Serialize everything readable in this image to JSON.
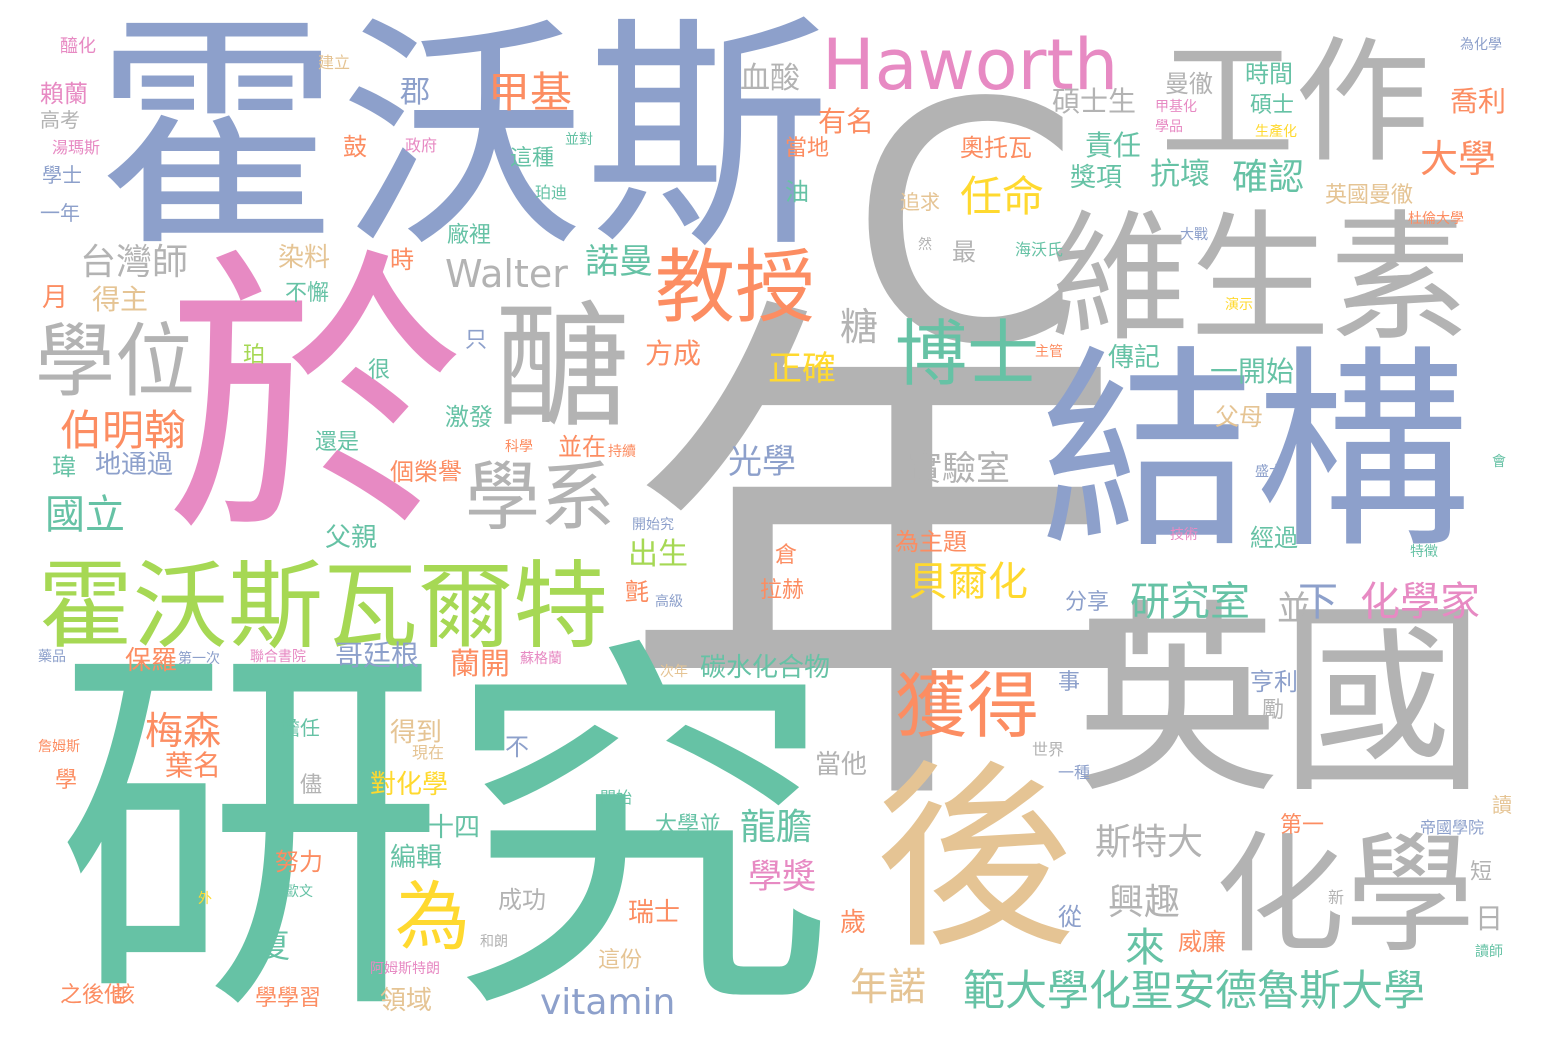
{
  "palette": {
    "gray": "#b3b3b3",
    "blue": "#8da0cb",
    "pink": "#e78ac3",
    "green": "#66c2a5",
    "orange": "#fc8d62",
    "lime": "#a6d854",
    "gold": "#e5c494",
    "yellow": "#ffd92f"
  },
  "words": [
    {
      "t": "年",
      "c": "gray"
    },
    {
      "t": "C",
      "c": "gray"
    },
    {
      "t": "研究",
      "c": "green"
    },
    {
      "t": "於",
      "c": "pink"
    },
    {
      "t": "霍沃斯",
      "c": "blue"
    },
    {
      "t": "結構",
      "c": "blue"
    },
    {
      "t": "英國",
      "c": "gray"
    },
    {
      "t": "後",
      "c": "gold"
    },
    {
      "t": "維生素",
      "c": "gray"
    },
    {
      "t": "工作",
      "c": "gray"
    },
    {
      "t": "醣",
      "c": "gray"
    },
    {
      "t": "霍沃斯瓦爾特",
      "c": "lime"
    },
    {
      "t": "化學",
      "c": "gray"
    },
    {
      "t": "Haworth",
      "c": "pink"
    },
    {
      "t": "教授",
      "c": "orange"
    },
    {
      "t": "學位",
      "c": "gray"
    },
    {
      "t": "學系",
      "c": "gray"
    },
    {
      "t": "博士",
      "c": "green"
    },
    {
      "t": "獲得",
      "c": "orange"
    },
    {
      "t": "為",
      "c": "yellow"
    },
    {
      "t": "範大學化聖安德魯斯大學",
      "c": "green"
    },
    {
      "t": "研究室",
      "c": "green"
    },
    {
      "t": "任命",
      "c": "yellow"
    },
    {
      "t": "Walter",
      "c": "gray"
    },
    {
      "t": "伯明翰",
      "c": "orange"
    },
    {
      "t": "甲基",
      "c": "orange"
    },
    {
      "t": "化學家",
      "c": "pink"
    },
    {
      "t": "貝爾化",
      "c": "yellow"
    },
    {
      "t": "vitamin",
      "c": "blue"
    },
    {
      "t": "國立",
      "c": "green"
    },
    {
      "t": "台灣師",
      "c": "gray"
    },
    {
      "t": "大學",
      "c": "orange"
    },
    {
      "t": "確認",
      "c": "green"
    },
    {
      "t": "諾曼",
      "c": "green"
    },
    {
      "t": "實驗室",
      "c": "gray"
    },
    {
      "t": "梅森",
      "c": "orange"
    },
    {
      "t": "斯特大",
      "c": "gray"
    },
    {
      "t": "興趣",
      "c": "gray"
    },
    {
      "t": "龍膽",
      "c": "green"
    },
    {
      "t": "光學",
      "c": "blue"
    },
    {
      "t": "正確",
      "c": "yellow"
    },
    {
      "t": "學獎",
      "c": "pink"
    },
    {
      "t": "年諾",
      "c": "gold"
    },
    {
      "t": "碳水化合物",
      "c": "green"
    },
    {
      "t": "下",
      "c": "blue"
    },
    {
      "t": "並",
      "c": "gray"
    },
    {
      "t": "來",
      "c": "green"
    },
    {
      "t": "碩士生",
      "c": "gray"
    },
    {
      "t": "抗壞",
      "c": "green"
    },
    {
      "t": "喬利",
      "c": "orange"
    },
    {
      "t": "英國曼徹",
      "c": "gold"
    },
    {
      "t": "糖",
      "c": "gray"
    },
    {
      "t": "方成",
      "c": "orange"
    },
    {
      "t": "血酸",
      "c": "gray"
    },
    {
      "t": "有名",
      "c": "orange"
    },
    {
      "t": "責任",
      "c": "green"
    },
    {
      "t": "獎項",
      "c": "green"
    },
    {
      "t": "奧托瓦",
      "c": "orange"
    },
    {
      "t": "曼徹",
      "c": "gray"
    },
    {
      "t": "時間",
      "c": "green"
    },
    {
      "t": "碩士",
      "c": "green"
    },
    {
      "t": "一開始",
      "c": "green"
    },
    {
      "t": "傳記",
      "c": "green"
    },
    {
      "t": "父母",
      "c": "gold"
    },
    {
      "t": "分享",
      "c": "blue"
    },
    {
      "t": "亨利",
      "c": "blue"
    },
    {
      "t": "經過",
      "c": "green"
    },
    {
      "t": "為主題",
      "c": "orange"
    },
    {
      "t": "出生",
      "c": "lime"
    },
    {
      "t": "蘭開",
      "c": "orange"
    },
    {
      "t": "哥廷根",
      "c": "blue"
    },
    {
      "t": "保羅",
      "c": "orange"
    },
    {
      "t": "地通過",
      "c": "blue"
    },
    {
      "t": "個榮譽",
      "c": "orange"
    },
    {
      "t": "父親",
      "c": "green"
    },
    {
      "t": "激發",
      "c": "green"
    },
    {
      "t": "還是",
      "c": "green"
    },
    {
      "t": "並在",
      "c": "orange"
    },
    {
      "t": "葉名",
      "c": "orange"
    },
    {
      "t": "對化學",
      "c": "yellow"
    },
    {
      "t": "得到",
      "c": "gold"
    },
    {
      "t": "十四",
      "c": "green"
    },
    {
      "t": "編輯",
      "c": "green"
    },
    {
      "t": "努力",
      "c": "orange"
    },
    {
      "t": "成功",
      "c": "gray"
    },
    {
      "t": "瑞士",
      "c": "orange"
    },
    {
      "t": "這份",
      "c": "gold"
    },
    {
      "t": "領域",
      "c": "gold"
    },
    {
      "t": "學學習",
      "c": "orange"
    },
    {
      "t": "之後他",
      "c": "orange"
    },
    {
      "t": "該",
      "c": "orange"
    },
    {
      "t": "夏",
      "c": "green"
    },
    {
      "t": "當他",
      "c": "gray"
    },
    {
      "t": "歲",
      "c": "orange"
    },
    {
      "t": "威廉",
      "c": "orange"
    },
    {
      "t": "日",
      "c": "gray"
    },
    {
      "t": "第一",
      "c": "orange"
    },
    {
      "t": "從",
      "c": "blue"
    },
    {
      "t": "月",
      "c": "orange"
    },
    {
      "t": "得主",
      "c": "gold"
    },
    {
      "t": "染料",
      "c": "gold"
    },
    {
      "t": "不懈",
      "c": "green"
    },
    {
      "t": "廠裡",
      "c": "green"
    },
    {
      "t": "最",
      "c": "gray"
    },
    {
      "t": "郡",
      "c": "blue"
    },
    {
      "t": "這種",
      "c": "green"
    },
    {
      "t": "鼓",
      "c": "orange"
    },
    {
      "t": "油",
      "c": "green"
    },
    {
      "t": "當地",
      "c": "orange"
    },
    {
      "t": "追求",
      "c": "gold"
    },
    {
      "t": "賴蘭",
      "c": "pink"
    },
    {
      "t": "高考",
      "c": "gray"
    },
    {
      "t": "學士",
      "c": "blue"
    },
    {
      "t": "一年",
      "c": "blue"
    },
    {
      "t": "醯化",
      "c": "pink"
    },
    {
      "t": "瑋",
      "c": "green"
    },
    {
      "t": "時",
      "c": "orange"
    },
    {
      "t": "很",
      "c": "green"
    },
    {
      "t": "只",
      "c": "blue"
    },
    {
      "t": "不",
      "c": "blue"
    },
    {
      "t": "儘",
      "c": "gray"
    },
    {
      "t": "擔任",
      "c": "green"
    },
    {
      "t": "倉",
      "c": "orange"
    },
    {
      "t": "拉赫",
      "c": "orange"
    },
    {
      "t": "氈",
      "c": "orange"
    },
    {
      "t": "大學並",
      "c": "green"
    },
    {
      "t": "事",
      "c": "blue"
    },
    {
      "t": "勵",
      "c": "gray"
    },
    {
      "t": "學",
      "c": "orange"
    },
    {
      "t": "然",
      "c": "gray"
    },
    {
      "t": "帝國學院",
      "c": "blue"
    },
    {
      "t": "讀",
      "c": "gold"
    },
    {
      "t": "短",
      "c": "gray"
    },
    {
      "t": "新",
      "c": "gray"
    },
    {
      "t": "讀師",
      "c": "green"
    },
    {
      "t": "現在",
      "c": "gold"
    },
    {
      "t": "開始",
      "c": "green"
    },
    {
      "t": "和朗",
      "c": "gray"
    },
    {
      "t": "世界",
      "c": "gray"
    },
    {
      "t": "一種",
      "c": "blue"
    },
    {
      "t": "建立",
      "c": "gold"
    },
    {
      "t": "政府",
      "c": "pink"
    },
    {
      "t": "並對",
      "c": "green"
    },
    {
      "t": "為化學",
      "c": "blue"
    },
    {
      "t": "甲基化",
      "c": "pink"
    },
    {
      "t": "生產化",
      "c": "yellow"
    },
    {
      "t": "學品",
      "c": "pink"
    },
    {
      "t": "大戰",
      "c": "blue"
    },
    {
      "t": "杜倫大學",
      "c": "orange"
    },
    {
      "t": "演示",
      "c": "yellow"
    },
    {
      "t": "海沃氏",
      "c": "green"
    },
    {
      "t": "主管",
      "c": "orange"
    },
    {
      "t": "技術",
      "c": "pink"
    },
    {
      "t": "特徵",
      "c": "green"
    },
    {
      "t": "會",
      "c": "green"
    },
    {
      "t": "盛大",
      "c": "blue"
    },
    {
      "t": "次年",
      "c": "gold"
    },
    {
      "t": "科學",
      "c": "orange"
    },
    {
      "t": "持續",
      "c": "orange"
    },
    {
      "t": "開始究",
      "c": "blue"
    },
    {
      "t": "高級",
      "c": "blue"
    },
    {
      "t": "蘇格蘭",
      "c": "pink"
    },
    {
      "t": "聯合書院",
      "c": "pink"
    },
    {
      "t": "第一次",
      "c": "blue"
    },
    {
      "t": "藥品",
      "c": "blue"
    },
    {
      "t": "詹姆斯",
      "c": "orange"
    },
    {
      "t": "歐文",
      "c": "green"
    },
    {
      "t": "外",
      "c": "yellow"
    },
    {
      "t": "阿姆斯特朗",
      "c": "pink"
    },
    {
      "t": "珀迪",
      "c": "green"
    },
    {
      "t": "珀",
      "c": "lime"
    },
    {
      "t": "湯瑪斯",
      "c": "pink"
    }
  ]
}
